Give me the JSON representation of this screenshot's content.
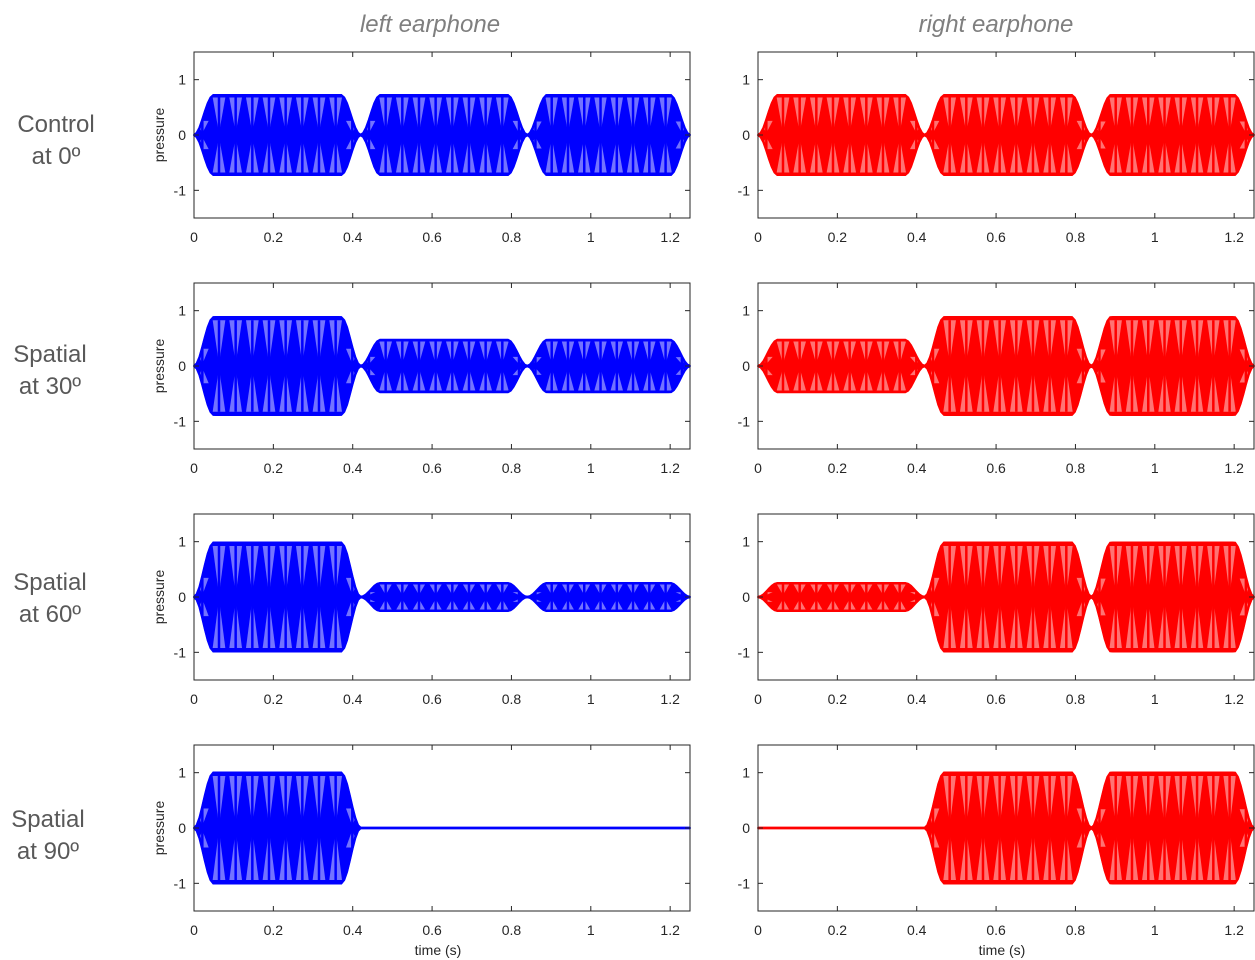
{
  "figure": {
    "column_titles": [
      "left earphone",
      "right earphone"
    ],
    "row_labels": [
      [
        "Control",
        "at 0º"
      ],
      [
        "Spatial",
        "at 30º"
      ],
      [
        "Spatial",
        "at 60º"
      ],
      [
        "Spatial",
        "at 90º"
      ]
    ]
  },
  "colors": {
    "left": "#0000ff",
    "right": "#ff0000"
  },
  "chart_data": {
    "type": "line",
    "description_of_signal": "amplitude-modulated tone bursts (pressure vs time)",
    "x_range": [
      0,
      1.25
    ],
    "y_range": [
      -1.5,
      1.5
    ],
    "x_ticks": [
      "0",
      "0.2",
      "0.4",
      "0.6",
      "0.8",
      "1",
      "1.2"
    ],
    "y_ticks": [
      "1",
      "0",
      "-1"
    ],
    "ylabel": "pressure",
    "xlabel": "time (s)",
    "bursts": [
      {
        "start": 0.0,
        "end": 0.42
      },
      {
        "start": 0.42,
        "end": 0.84
      },
      {
        "start": 0.84,
        "end": 1.25
      }
    ],
    "ramp": 0.05,
    "modulation_cycles_per_burst": 10,
    "panels": [
      {
        "row": 0,
        "ear": "left",
        "burst_amplitudes": [
          0.72,
          0.72,
          0.72
        ]
      },
      {
        "row": 0,
        "ear": "right",
        "burst_amplitudes": [
          0.72,
          0.72,
          0.72
        ]
      },
      {
        "row": 1,
        "ear": "left",
        "burst_amplitudes": [
          0.88,
          0.47,
          0.47
        ]
      },
      {
        "row": 1,
        "ear": "right",
        "burst_amplitudes": [
          0.47,
          0.88,
          0.88
        ]
      },
      {
        "row": 2,
        "ear": "left",
        "burst_amplitudes": [
          0.98,
          0.25,
          0.25
        ]
      },
      {
        "row": 2,
        "ear": "right",
        "burst_amplitudes": [
          0.25,
          0.98,
          0.98
        ]
      },
      {
        "row": 3,
        "ear": "left",
        "burst_amplitudes": [
          1.0,
          0.0,
          0.0
        ]
      },
      {
        "row": 3,
        "ear": "right",
        "burst_amplitudes": [
          0.0,
          1.0,
          1.0
        ]
      }
    ]
  }
}
